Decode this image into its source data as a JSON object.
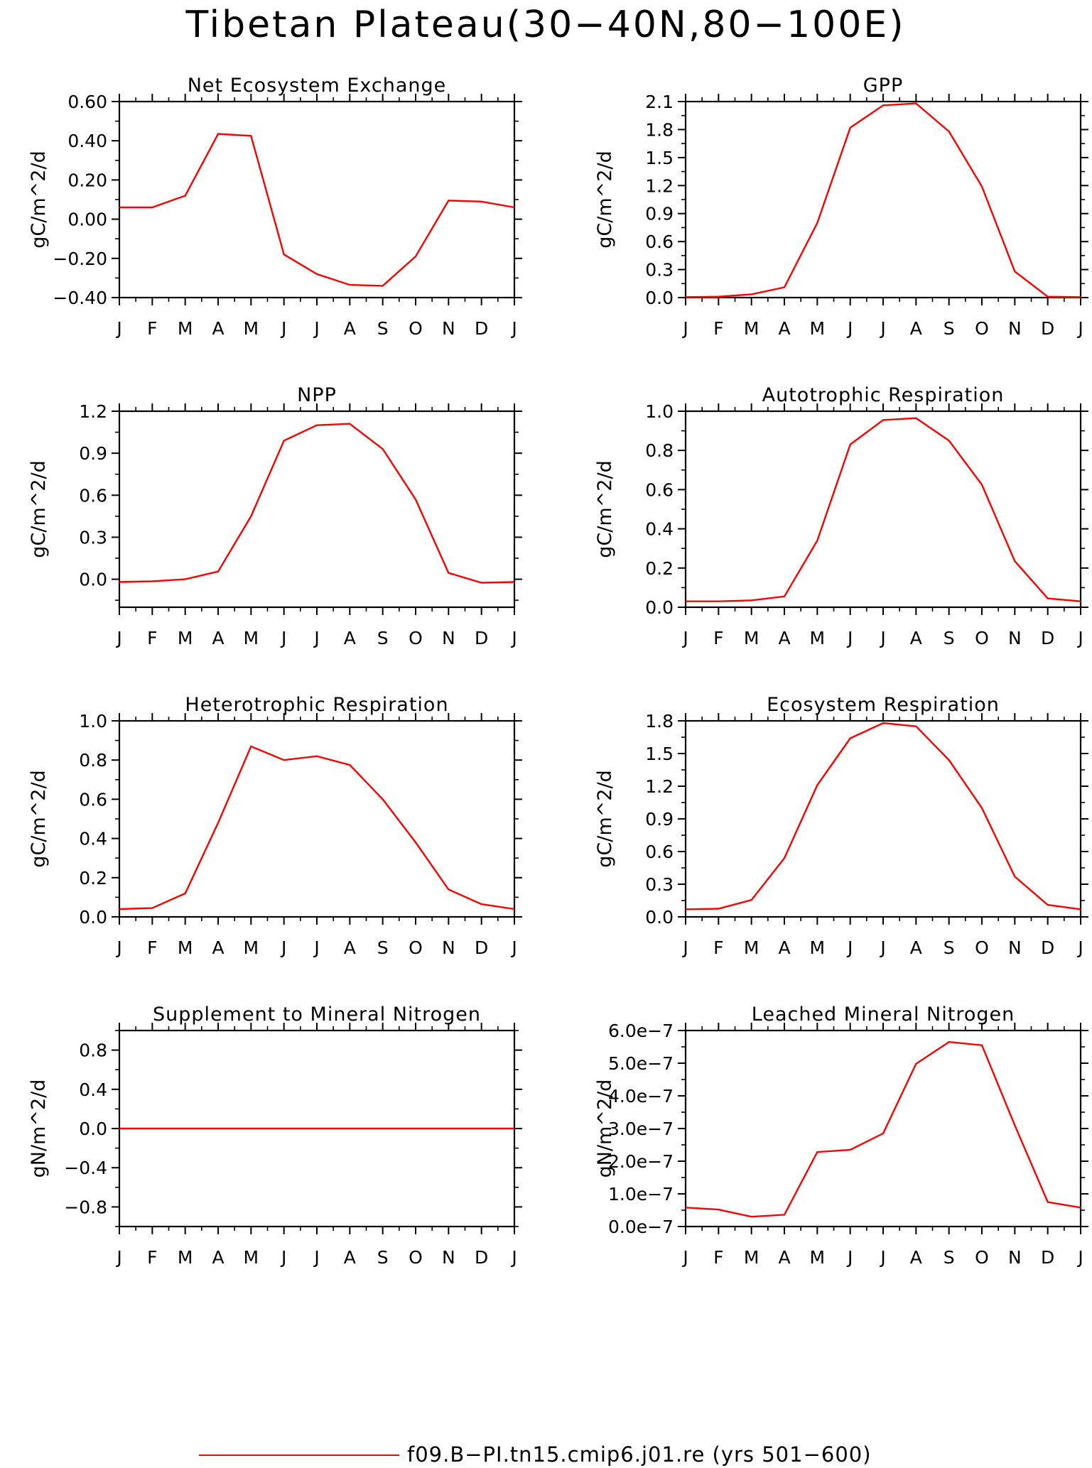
{
  "page": {
    "title": "Tibetan Plateau(30−40N,80−100E)",
    "legend_label": "f09.B−PI.tn15.cmip6.j01.re (yrs 501−600)"
  },
  "colors": {
    "line": "#ff0000",
    "axis": "#000000",
    "background": "#ffffff"
  },
  "chart_data": [
    {
      "type": "line",
      "title": "Net Ecosystem Exchange",
      "ylabel": "gC/m^2/d",
      "xlabel": "",
      "categories": [
        "J",
        "F",
        "M",
        "A",
        "M",
        "J",
        "J",
        "A",
        "S",
        "O",
        "N",
        "D",
        "J"
      ],
      "ylim": [
        -0.4,
        0.6
      ],
      "yticks": [
        -0.4,
        -0.2,
        0.0,
        0.2,
        0.4,
        0.6
      ],
      "ytick_labels": [
        "−0.40",
        "−0.20",
        "0.00",
        "0.20",
        "0.40",
        "0.60"
      ],
      "values": [
        0.06,
        0.06,
        0.12,
        0.435,
        0.425,
        -0.18,
        -0.28,
        -0.335,
        -0.34,
        -0.19,
        0.095,
        0.09,
        0.06
      ],
      "grid": false
    },
    {
      "type": "line",
      "title": "GPP",
      "ylabel": "gC/m^2/d",
      "xlabel": "",
      "categories": [
        "J",
        "F",
        "M",
        "A",
        "M",
        "J",
        "J",
        "A",
        "S",
        "O",
        "N",
        "D",
        "J"
      ],
      "ylim": [
        0.0,
        2.1
      ],
      "yticks": [
        0.0,
        0.3,
        0.6,
        0.9,
        1.2,
        1.5,
        1.8,
        2.1
      ],
      "ytick_labels": [
        "0.0",
        "0.3",
        "0.6",
        "0.9",
        "1.2",
        "1.5",
        "1.8",
        "2.1"
      ],
      "values": [
        0.005,
        0.01,
        0.035,
        0.11,
        0.8,
        1.82,
        2.06,
        2.08,
        1.78,
        1.19,
        0.28,
        0.01,
        0.005
      ],
      "grid": false
    },
    {
      "type": "line",
      "title": "NPP",
      "ylabel": "gC/m^2/d",
      "xlabel": "",
      "categories": [
        "J",
        "F",
        "M",
        "A",
        "M",
        "J",
        "J",
        "A",
        "S",
        "O",
        "N",
        "D",
        "J"
      ],
      "ylim": [
        -0.2,
        1.2
      ],
      "yticks": [
        0.0,
        0.3,
        0.6,
        0.9,
        1.2
      ],
      "ytick_labels": [
        "0.0",
        "0.3",
        "0.6",
        "0.9",
        "1.2"
      ],
      "values": [
        -0.02,
        -0.015,
        0.0,
        0.055,
        0.45,
        0.99,
        1.1,
        1.11,
        0.93,
        0.57,
        0.045,
        -0.025,
        -0.02
      ],
      "grid": false
    },
    {
      "type": "line",
      "title": "Autotrophic Respiration",
      "ylabel": "gC/m^2/d",
      "xlabel": "",
      "categories": [
        "J",
        "F",
        "M",
        "A",
        "M",
        "J",
        "J",
        "A",
        "S",
        "O",
        "N",
        "D",
        "J"
      ],
      "ylim": [
        0.0,
        1.0
      ],
      "yticks": [
        0.0,
        0.2,
        0.4,
        0.6,
        0.8,
        1.0
      ],
      "ytick_labels": [
        "0.0",
        "0.2",
        "0.4",
        "0.6",
        "0.8",
        "1.0"
      ],
      "values": [
        0.03,
        0.03,
        0.035,
        0.055,
        0.34,
        0.83,
        0.955,
        0.965,
        0.85,
        0.625,
        0.235,
        0.045,
        0.03
      ],
      "grid": false
    },
    {
      "type": "line",
      "title": "Heterotrophic Respiration",
      "ylabel": "gC/m^2/d",
      "xlabel": "",
      "categories": [
        "J",
        "F",
        "M",
        "A",
        "M",
        "J",
        "J",
        "A",
        "S",
        "O",
        "N",
        "D",
        "J"
      ],
      "ylim": [
        0.0,
        1.0
      ],
      "yticks": [
        0.0,
        0.2,
        0.4,
        0.6,
        0.8,
        1.0
      ],
      "ytick_labels": [
        "0.0",
        "0.2",
        "0.4",
        "0.6",
        "0.8",
        "1.0"
      ],
      "values": [
        0.04,
        0.045,
        0.12,
        0.48,
        0.87,
        0.8,
        0.82,
        0.775,
        0.6,
        0.38,
        0.14,
        0.065,
        0.04
      ],
      "grid": false
    },
    {
      "type": "line",
      "title": "Ecosystem Respiration",
      "ylabel": "gC/m^2/d",
      "xlabel": "",
      "categories": [
        "J",
        "F",
        "M",
        "A",
        "M",
        "J",
        "J",
        "A",
        "S",
        "O",
        "N",
        "D",
        "J"
      ],
      "ylim": [
        0.0,
        1.8
      ],
      "yticks": [
        0.0,
        0.3,
        0.6,
        0.9,
        1.2,
        1.5,
        1.8
      ],
      "ytick_labels": [
        "0.0",
        "0.3",
        "0.6",
        "0.9",
        "1.2",
        "1.5",
        "1.8"
      ],
      "values": [
        0.07,
        0.075,
        0.155,
        0.54,
        1.21,
        1.64,
        1.78,
        1.75,
        1.44,
        1.0,
        0.37,
        0.11,
        0.07
      ],
      "grid": false
    },
    {
      "type": "line",
      "title": "Supplement to Mineral Nitrogen",
      "ylabel": "gN/m^2/d",
      "xlabel": "",
      "categories": [
        "J",
        "F",
        "M",
        "A",
        "M",
        "J",
        "J",
        "A",
        "S",
        "O",
        "N",
        "D",
        "J"
      ],
      "ylim": [
        -1.0,
        1.0
      ],
      "yticks": [
        -0.8,
        -0.4,
        0.0,
        0.4,
        0.8
      ],
      "ytick_labels": [
        "−0.8",
        "−0.4",
        "0.0",
        "0.4",
        "0.8"
      ],
      "values": [
        0,
        0,
        0,
        0,
        0,
        0,
        0,
        0,
        0,
        0,
        0,
        0,
        0
      ],
      "grid": false
    },
    {
      "type": "line",
      "title": "Leached Mineral Nitrogen",
      "ylabel": "gN/m^2/d",
      "xlabel": "",
      "categories": [
        "J",
        "F",
        "M",
        "A",
        "M",
        "J",
        "J",
        "A",
        "S",
        "O",
        "N",
        "D",
        "J"
      ],
      "ylim": [
        0.0,
        6e-07
      ],
      "yticks": [
        0.0,
        1e-07,
        2e-07,
        3e-07,
        4e-07,
        5e-07,
        6e-07
      ],
      "ytick_labels": [
        "0.0e−7",
        "1.0e−7",
        "2.0e−7",
        "3.0e−7",
        "4.0e−7",
        "5.0e−7",
        "6.0e−7"
      ],
      "values": [
        5.8e-08,
        5.2e-08,
        3e-08,
        3.6e-08,
        2.28e-07,
        2.35e-07,
        2.85e-07,
        4.98e-07,
        5.65e-07,
        5.55e-07,
        3.1e-07,
        7.5e-08,
        5.8e-08
      ],
      "grid": false
    }
  ]
}
